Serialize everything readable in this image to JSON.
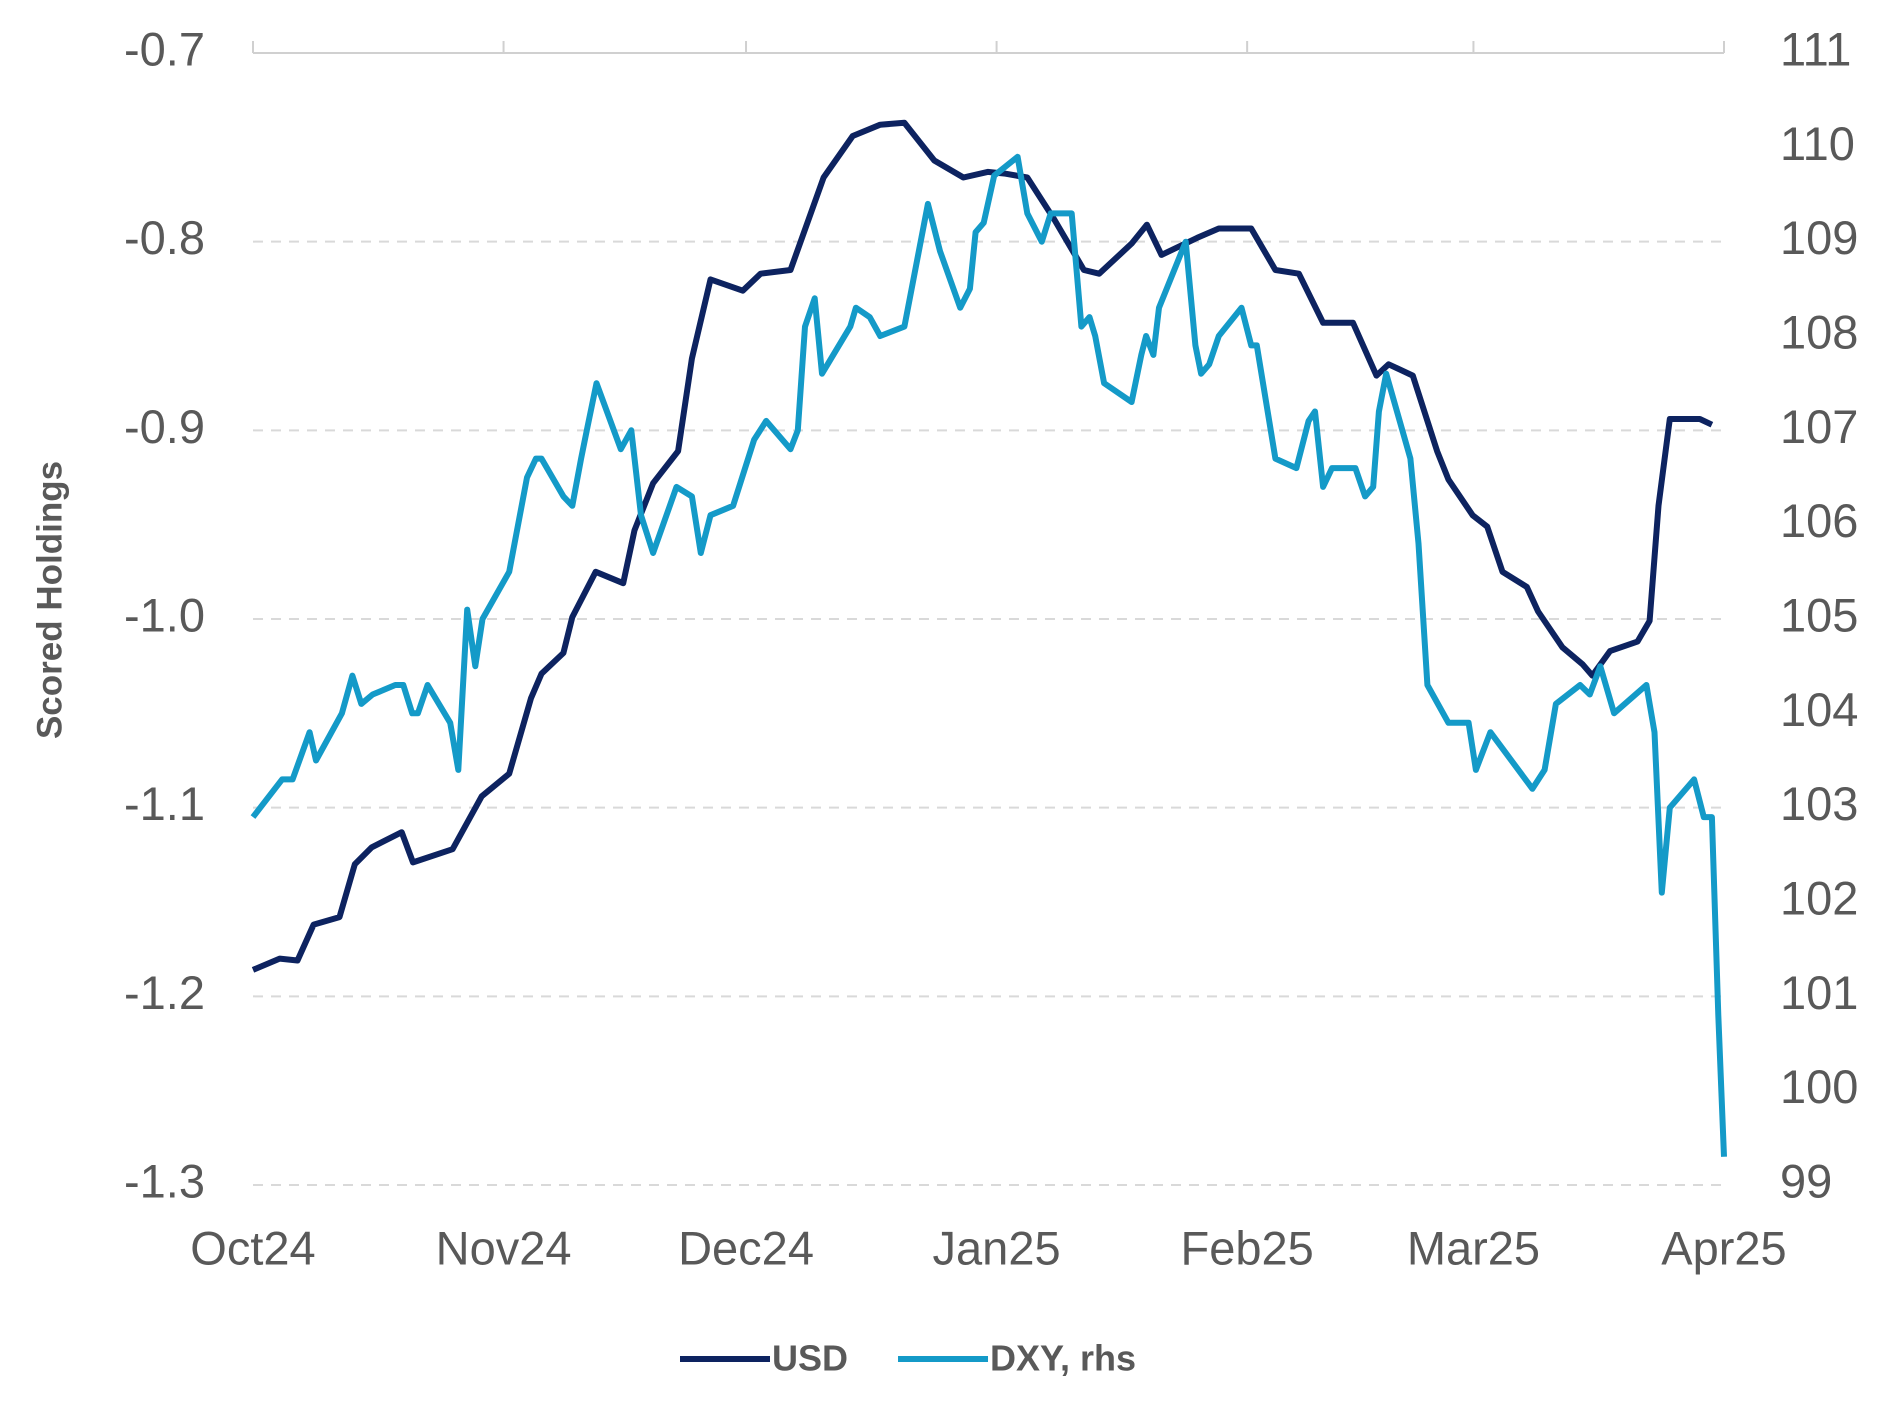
{
  "chart_data": {
    "type": "line",
    "y_label": "Scored Holdings",
    "xlim": [
      0,
      182
    ],
    "xticks": [
      {
        "value": 0,
        "label": "Oct24"
      },
      {
        "value": 31,
        "label": "Nov24"
      },
      {
        "value": 61,
        "label": "Dec24"
      },
      {
        "value": 92,
        "label": "Jan25"
      },
      {
        "value": 123,
        "label": "Feb25"
      },
      {
        "value": 151,
        "label": "Mar25"
      },
      {
        "value": 182,
        "label": "Apr25"
      }
    ],
    "ylim": [
      -1.3,
      -0.7
    ],
    "yticks": [
      {
        "value": -0.7,
        "label": "-0.7"
      },
      {
        "value": -0.8,
        "label": "-0.8"
      },
      {
        "value": -0.9,
        "label": "-0.9"
      },
      {
        "value": -1.0,
        "label": "-1.0"
      },
      {
        "value": -1.1,
        "label": "-1.1"
      },
      {
        "value": -1.2,
        "label": "-1.2"
      },
      {
        "value": -1.3,
        "label": "-1.3"
      }
    ],
    "y2lim": [
      99,
      111
    ],
    "y2ticks": [
      99,
      100,
      101,
      102,
      103,
      104,
      105,
      106,
      107,
      108,
      109,
      110,
      111
    ],
    "grid": true,
    "legend": "bottom",
    "series": [
      {
        "name": "USD",
        "color": "#0d2360",
        "x": [
          0,
          3.3,
          5.5,
          7.5,
          10.7,
          12.6,
          14.7,
          18.4,
          19.8,
          24.7,
          28.3,
          31.7,
          34.4,
          35.7,
          38.4,
          39.5,
          42.4,
          45.8,
          47.2,
          49.5,
          52.6,
          54.3,
          56.6,
          60.6,
          62.8,
          66.5,
          70.6,
          74.2,
          77.6,
          80.6,
          84.3,
          87.9,
          90.9,
          93.1,
          95.8,
          99.1,
          102.8,
          104.7,
          108.7,
          110.6,
          112.4,
          116.8,
          119.5,
          123.5,
          126.5,
          129.4,
          132.4,
          136.1,
          139.0,
          140.5,
          143.5,
          146.5,
          147.9,
          150.9,
          152.7,
          154.6,
          157.6,
          159.0,
          162.0,
          164.5,
          165.7,
          167.9,
          171.3,
          172.8,
          173.9,
          175.3,
          179.0,
          180.5
        ],
        "values": [
          -1.186,
          -1.18,
          -1.181,
          -1.162,
          -1.158,
          -1.13,
          -1.121,
          -1.113,
          -1.129,
          -1.122,
          -1.094,
          -1.082,
          -1.042,
          -1.029,
          -1.018,
          -0.999,
          -0.975,
          -0.981,
          -0.953,
          -0.928,
          -0.911,
          -0.862,
          -0.82,
          -0.826,
          -0.817,
          -0.815,
          -0.766,
          -0.744,
          -0.738,
          -0.737,
          -0.757,
          -0.766,
          -0.763,
          -0.764,
          -0.766,
          -0.788,
          -0.815,
          -0.817,
          -0.801,
          -0.791,
          -0.807,
          -0.798,
          -0.793,
          -0.793,
          -0.815,
          -0.817,
          -0.843,
          -0.843,
          -0.871,
          -0.865,
          -0.871,
          -0.911,
          -0.926,
          -0.945,
          -0.951,
          -0.975,
          -0.983,
          -0.996,
          -1.015,
          -1.024,
          -1.03,
          -1.017,
          -1.012,
          -1.001,
          -0.94,
          -0.894,
          -0.894,
          -0.897
        ]
      },
      {
        "name": "DXY, rhs",
        "color": "#149ac8",
        "axis": "y2",
        "x": [
          0,
          3.6,
          4.9,
          7.0,
          7.8,
          11.0,
          12.3,
          13.4,
          14.8,
          17.6,
          18.6,
          19.7,
          20.4,
          21.6,
          24.4,
          25.4,
          26.5,
          27.5,
          28.4,
          31.7,
          33.9,
          35.0,
          35.7,
          38.4,
          39.5,
          40.6,
          41.3,
          42.5,
          45.5,
          46.8,
          48.0,
          49.5,
          52.4,
          54.3,
          55.4,
          56.6,
          59.4,
          62.0,
          63.5,
          66.5,
          67.4,
          68.3,
          69.5,
          70.4,
          73.9,
          74.6,
          76.3,
          77.6,
          80.6,
          83.5,
          85.0,
          87.5,
          88.7,
          89.4,
          90.4,
          91.7,
          94.6,
          95.8,
          97.6,
          98.7,
          101.3,
          102.5,
          103.5,
          104.2,
          105.3,
          108.7,
          109.9,
          110.5,
          111.4,
          112.1,
          115.4,
          116.6,
          117.3,
          118.3,
          119.5,
          122.3,
          123.5,
          124.2,
          126.5,
          129.1,
          130.6,
          131.4,
          132.4,
          133.5,
          136.4,
          137.6,
          138.6,
          139.3,
          140.2,
          143.2,
          144.2,
          145.3,
          147.9,
          150.4,
          151.3,
          153.1,
          158.3,
          159.8,
          161.2,
          164.2,
          165.4,
          166.7,
          168.4,
          172.4,
          173.4,
          174.3,
          175.3,
          178.3,
          179.5,
          180.5,
          181.3,
          182.0
        ],
        "values": [
          102.9,
          103.3,
          103.3,
          103.8,
          103.5,
          104.0,
          104.4,
          104.1,
          104.2,
          104.3,
          104.3,
          104.0,
          104.0,
          104.3,
          103.9,
          103.4,
          105.1,
          104.5,
          105.0,
          105.5,
          106.5,
          106.7,
          106.7,
          106.3,
          106.2,
          106.7,
          107.0,
          107.5,
          106.8,
          107.0,
          106.1,
          105.7,
          106.4,
          106.3,
          105.7,
          106.1,
          106.2,
          106.9,
          107.1,
          106.8,
          107.0,
          108.1,
          108.4,
          107.6,
          108.1,
          108.3,
          108.2,
          108.0,
          108.1,
          109.4,
          108.9,
          108.3,
          108.5,
          109.1,
          109.2,
          109.7,
          109.9,
          109.3,
          109.0,
          109.3,
          109.3,
          108.1,
          108.2,
          108.0,
          107.5,
          107.3,
          107.8,
          108.0,
          107.8,
          108.3,
          109.0,
          107.9,
          107.6,
          107.7,
          108.0,
          108.3,
          107.9,
          107.9,
          106.7,
          106.6,
          107.1,
          107.2,
          106.4,
          106.6,
          106.6,
          106.3,
          106.4,
          107.2,
          107.6,
          106.7,
          105.8,
          104.3,
          103.9,
          103.9,
          103.4,
          103.8,
          103.2,
          103.4,
          104.1,
          104.3,
          104.2,
          104.5,
          104.0,
          104.3,
          103.8,
          102.1,
          103.0,
          103.3,
          102.9,
          102.9,
          100.8,
          99.3
        ]
      }
    ]
  }
}
